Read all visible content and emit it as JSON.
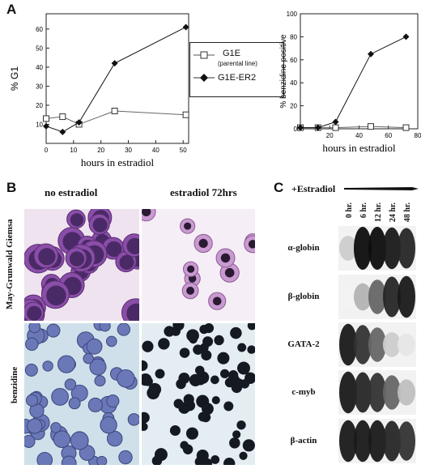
{
  "panels": {
    "a_label": "A",
    "b_label": "B",
    "c_label": "C"
  },
  "legend": {
    "items": [
      {
        "name": "G1E",
        "sub": "(parental line)",
        "marker": "open-square"
      },
      {
        "name": "G1E-ER2",
        "sub": "",
        "marker": "filled-diamond"
      }
    ]
  },
  "chart_data": [
    {
      "type": "line",
      "ylabel": "% G1",
      "xlabel": "hours in estradiol",
      "xlim": [
        0,
        52
      ],
      "ylim": [
        0,
        68
      ],
      "xticks": [
        0,
        10,
        20,
        30,
        40,
        50
      ],
      "yticks": [
        10,
        20,
        30,
        40,
        50,
        60
      ],
      "series": [
        {
          "name": "G1E",
          "marker": "open-square",
          "x": [
            0,
            6,
            12,
            25,
            51
          ],
          "y": [
            13,
            14,
            10,
            17,
            15
          ]
        },
        {
          "name": "G1E-ER2",
          "marker": "filled-diamond",
          "x": [
            0,
            6,
            12,
            25,
            51
          ],
          "y": [
            9,
            6,
            11,
            42,
            61
          ]
        }
      ]
    },
    {
      "type": "line",
      "ylabel": "% benzidine positive",
      "xlabel": "hours in estradiol",
      "xlim": [
        0,
        80
      ],
      "ylim": [
        0,
        100
      ],
      "xticks": [
        20,
        40,
        60,
        80
      ],
      "yticks": [
        0,
        20,
        40,
        60,
        80,
        100
      ],
      "series": [
        {
          "name": "G1E",
          "marker": "open-square",
          "x": [
            0,
            12,
            24,
            48,
            72
          ],
          "y": [
            1,
            1,
            1,
            2,
            1
          ]
        },
        {
          "name": "G1E-ER2",
          "marker": "filled-diamond",
          "x": [
            0,
            12,
            24,
            48,
            72
          ],
          "y": [
            1,
            1,
            6,
            65,
            80
          ]
        }
      ]
    }
  ],
  "micrographs": {
    "col_no_estradiol": "no estradiol",
    "col_estradiol": "estradiol 72hrs",
    "row_giemsa": "May-Grunwald Giemsa",
    "row_benzidine": "benzidine"
  },
  "blots": {
    "header": "+Estradiol",
    "lanes": [
      "0 hr.",
      "6 hr.",
      "12 hr.",
      "24 hr.",
      "48 hr."
    ],
    "genes": [
      "α-globin",
      "β-globin",
      "GATA-2",
      "c-myb",
      "β-actin"
    ]
  }
}
